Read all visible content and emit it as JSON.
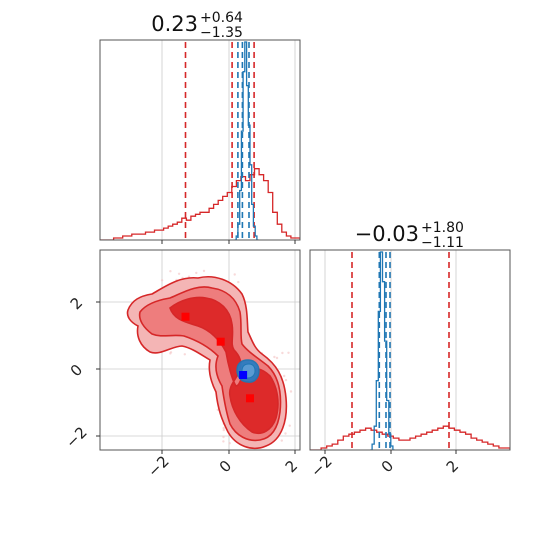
{
  "colors": {
    "red": "#d62728",
    "blue": "#1f77b4",
    "red_fill_outer": "#f4b5b5",
    "red_fill_mid": "#ee7d7d",
    "red_fill_inner": "#dd2a2a",
    "blue_fill": "#2b7cc2",
    "marker_red": "#ff0000",
    "marker_blue": "#0000ff",
    "grid": "#cccccc"
  },
  "titles": {
    "x0": {
      "value": "0.23",
      "plus": "+0.64",
      "minus": "−1.35"
    },
    "x1": {
      "value": "−0.03",
      "plus": "+1.80",
      "minus": "−1.11"
    }
  },
  "chart_data": [
    {
      "type": "histogram-panel",
      "panel": "x0 marginal",
      "xlim": [
        -3.6,
        2.2
      ],
      "grid": true,
      "series": [
        {
          "color": "red",
          "step_values": [
            0,
            0,
            0,
            0.01,
            0.01,
            0.02,
            0.02,
            0.03,
            0.03,
            0.03,
            0.04,
            0.04,
            0.05,
            0.05,
            0.06,
            0.07,
            0.08,
            0.09,
            0.11,
            0.1,
            0.12,
            0.13,
            0.14,
            0.14,
            0.16,
            0.18,
            0.2,
            0.22,
            0.24,
            0.27,
            0.3,
            0.32,
            0.3,
            0.33,
            0.36,
            0.33,
            0.3,
            0.24,
            0.14,
            0.08,
            0.04,
            0.02,
            0.01,
            0.01
          ],
          "quantile_lines": [
            -1.12,
            0.23,
            0.87
          ]
        },
        {
          "color": "blue",
          "step_values": [
            0,
            0.02,
            0.08,
            0.25,
            0.55,
            0.85,
            1.0,
            0.78,
            0.58,
            0.38,
            0.18,
            0.07,
            0.02,
            0
          ],
          "step_range": [
            0.3,
            1.0
          ],
          "quantile_lines": [
            0.4,
            0.53,
            0.72
          ]
        }
      ]
    },
    {
      "type": "histogram-panel",
      "panel": "x1 marginal",
      "xlim": [
        -2.4,
        3.6
      ],
      "xticks": [
        "−2",
        "0",
        "2"
      ],
      "grid": true,
      "series": [
        {
          "color": "red",
          "step_values": [
            0,
            0,
            0.01,
            0.02,
            0.03,
            0.05,
            0.07,
            0.08,
            0.09,
            0.1,
            0.11,
            0.1,
            0.09,
            0.08,
            0.07,
            0.06,
            0.05,
            0.05,
            0.06,
            0.07,
            0.08,
            0.09,
            0.1,
            0.11,
            0.12,
            0.11,
            0.1,
            0.09,
            0.08,
            0.06,
            0.05,
            0.04,
            0.03,
            0.02,
            0.01,
            0.01
          ],
          "quantile_lines": [
            -1.14,
            1.77
          ]
        },
        {
          "color": "blue",
          "step_values": [
            0,
            0.03,
            0.12,
            0.35,
            0.7,
            1.0,
            0.85,
            0.55,
            0.25,
            0.08,
            0.02,
            0
          ],
          "step_range": [
            -0.6,
            0.15
          ],
          "quantile_lines": [
            -0.32,
            -0.12,
            0.0
          ]
        }
      ]
    },
    {
      "type": "scatter-contour",
      "panel": "x0 vs x1",
      "xlim": [
        -3.6,
        2.2
      ],
      "ylim": [
        -2.4,
        3.6
      ],
      "xticks": [
        "−2",
        "0",
        "2"
      ],
      "yticks": [
        "−2",
        "0",
        "2"
      ],
      "grid": true,
      "markers": [
        {
          "color": "marker_red",
          "x": -1.12,
          "y": 1.6
        },
        {
          "color": "marker_red",
          "x": -0.1,
          "y": 0.85
        },
        {
          "color": "marker_red",
          "x": 0.75,
          "y": -0.85
        },
        {
          "color": "marker_blue",
          "x": 0.55,
          "y": -0.15
        }
      ]
    }
  ]
}
